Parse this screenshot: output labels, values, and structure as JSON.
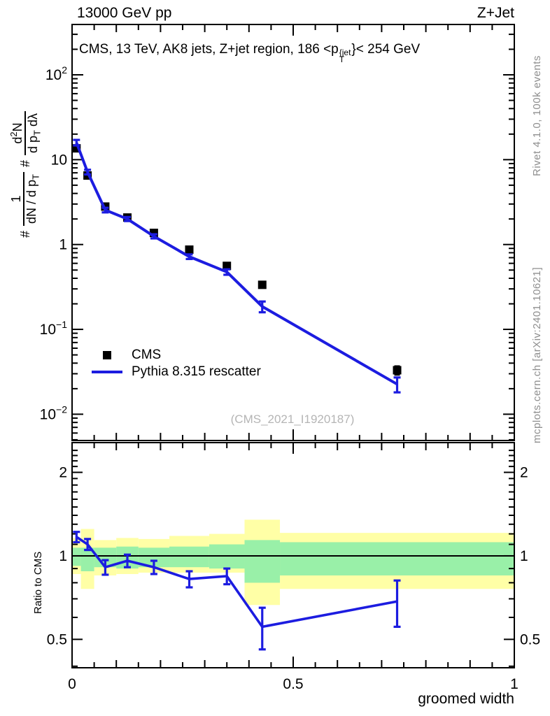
{
  "header": {
    "left": "13000 GeV pp",
    "right": "Z+Jet"
  },
  "panel_title": {
    "part1": "CMS, 13 TeV, AK8 jets, Z+jet region, 186 <p",
    "sup": "{jet",
    "sub": "T",
    "part2": "}< 254 GeV"
  },
  "watermark": "(CMS_2021_I1920187)",
  "side_notes": {
    "top_rotated": "Rivet 4.1.0,  100k events",
    "bottom_rotated": "mcplots.cern.ch [arXiv:2401.10621]"
  },
  "axis_labels": {
    "main_y": {
      "hash1": "#",
      "frac1_num": "1",
      "frac1_den": "dN / d p",
      "frac1_den_sub": "T",
      "hash2": "#",
      "frac2_num_a": "d",
      "frac2_num_sup": "2",
      "frac2_num_b": "N",
      "frac2_den_a": "d p",
      "frac2_den_sub": "T",
      "frac2_den_b": " dλ"
    },
    "ratio_y": "Ratio to CMS",
    "x": "groomed width"
  },
  "legend": {
    "items": [
      {
        "label": "CMS",
        "marker": "filled-square",
        "color": "#000000"
      },
      {
        "label": "Pythia 8.315 rescatter",
        "marker": "line",
        "color": "#1c1ce0"
      }
    ]
  },
  "colors": {
    "pythia_blue": "#1c1ce0",
    "cms_black": "#000000",
    "band_green": "#99f0a8",
    "band_yellow": "#ffffa6",
    "watermark_gray": "#b5b5b5",
    "side_note_gray": "#8f8f8f"
  },
  "chart_data": [
    {
      "type": "line",
      "title": "CMS, 13 TeV, AK8 jets, Z+jet region, 186 < pT{jet} < 254 GeV",
      "xlabel": "groomed width",
      "ylabel": "# 1/(dN/dpT) # d2N/(dpT dλ)",
      "xscale": "linear",
      "yscale": "log",
      "xlim": [
        0,
        1
      ],
      "ylim": [
        0.0049,
        392
      ],
      "grid": false,
      "legend_position": "center-left",
      "x": [
        0.01,
        0.035,
        0.075,
        0.125,
        0.185,
        0.265,
        0.35,
        0.43,
        0.735
      ],
      "bin_edges": [
        0,
        0.02,
        0.05,
        0.1,
        0.15,
        0.22,
        0.31,
        0.39,
        0.47,
        1.0
      ],
      "series": [
        {
          "name": "CMS",
          "type": "scatter",
          "marker": "square",
          "color": "#000000",
          "values": [
            13.6,
            6.5,
            2.8,
            2.08,
            1.37,
            0.87,
            0.56,
            0.335,
            0.033
          ],
          "yerr": [
            1.2,
            0.5,
            0.2,
            0.12,
            0.08,
            0.05,
            0.035,
            0.022,
            0.004
          ]
        },
        {
          "name": "Pythia 8.315 rescatter",
          "type": "line",
          "color": "#1c1ce0",
          "values": [
            15.9,
            7.15,
            2.55,
            2.0,
            1.25,
            0.72,
            0.475,
            0.186,
            0.0226
          ],
          "yerr": [
            1.2,
            0.45,
            0.16,
            0.11,
            0.07,
            0.045,
            0.035,
            0.027,
            0.0045
          ]
        }
      ],
      "ytick_labels": [
        {
          "v": 100,
          "base": "10",
          "exp": "2"
        },
        {
          "v": 10,
          "base": "10",
          "exp": ""
        },
        {
          "v": 1,
          "base": "1",
          "exp": ""
        },
        {
          "v": 0.1,
          "base": "10",
          "exp": "−1"
        },
        {
          "v": 0.01,
          "base": "10",
          "exp": "−2"
        }
      ],
      "xtick_labels": [
        {
          "v": 0,
          "label": "0"
        },
        {
          "v": 0.5,
          "label": "0.5"
        },
        {
          "v": 1,
          "label": "1"
        }
      ]
    },
    {
      "type": "ratio-line",
      "ylabel": "Ratio to CMS",
      "yscale": "log",
      "xlim": [
        0,
        1
      ],
      "ylim": [
        0.395,
        2.56
      ],
      "ref_line": 1,
      "x": [
        0.01,
        0.035,
        0.075,
        0.125,
        0.185,
        0.265,
        0.35,
        0.43,
        0.735
      ],
      "values": [
        1.17,
        1.1,
        0.91,
        0.96,
        0.91,
        0.825,
        0.845,
        0.555,
        0.685
      ],
      "yerr": [
        0.05,
        0.05,
        0.055,
        0.05,
        0.05,
        0.055,
        0.055,
        0.095,
        0.13
      ],
      "color": "#1c1ce0",
      "bands": {
        "edges": [
          0,
          0.02,
          0.05,
          0.1,
          0.15,
          0.22,
          0.31,
          0.39,
          0.47,
          1.0
        ],
        "green_lo": [
          0.92,
          0.88,
          0.91,
          0.9,
          0.91,
          0.91,
          0.9,
          0.8,
          0.85
        ],
        "green_hi": [
          1.07,
          1.07,
          1.07,
          1.08,
          1.07,
          1.08,
          1.1,
          1.14,
          1.12
        ],
        "yellow_lo": [
          0.86,
          0.76,
          0.85,
          0.86,
          0.87,
          0.87,
          0.87,
          0.665,
          0.76
        ],
        "yellow_hi": [
          1.16,
          1.25,
          1.14,
          1.16,
          1.15,
          1.18,
          1.2,
          1.35,
          1.21
        ],
        "green_color": "#99f0a8",
        "yellow_color": "#ffffa6"
      },
      "ytick_labels": [
        {
          "v": 2,
          "label": "2"
        },
        {
          "v": 1,
          "label": "1"
        },
        {
          "v": 0.5,
          "label": "0.5"
        }
      ]
    }
  ]
}
